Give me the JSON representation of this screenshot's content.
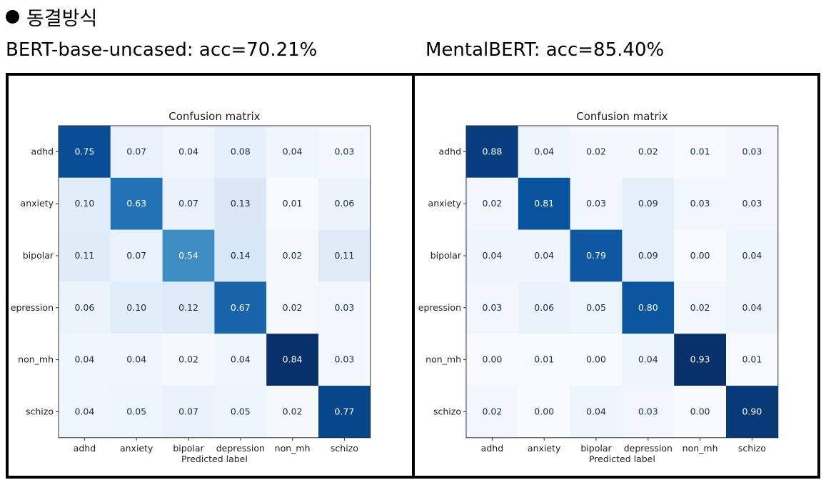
{
  "heading": {
    "bullet_icon": "filled-circle",
    "text": "동결방식"
  },
  "panels": [
    {
      "label": "BERT-base-uncased:  acc=70.21%"
    },
    {
      "label": "MentalBERT:  acc=85.40%"
    }
  ],
  "chart_data": [
    {
      "type": "heatmap",
      "title": "Confusion matrix",
      "xlabel": "Predicted label",
      "ylabel": "",
      "categories": [
        "adhd",
        "anxiety",
        "bipolar",
        "depression",
        "non_mh",
        "schizo"
      ],
      "y_tick_labels": [
        "adhd",
        "anxiety",
        "bipolar",
        "epression",
        "non_mh",
        "schizo"
      ],
      "colormap": "Blues",
      "values": [
        [
          0.75,
          0.07,
          0.04,
          0.08,
          0.04,
          0.03
        ],
        [
          0.1,
          0.63,
          0.07,
          0.13,
          0.01,
          0.06
        ],
        [
          0.11,
          0.07,
          0.54,
          0.14,
          0.02,
          0.11
        ],
        [
          0.06,
          0.1,
          0.12,
          0.67,
          0.02,
          0.03
        ],
        [
          0.04,
          0.04,
          0.02,
          0.04,
          0.84,
          0.03
        ],
        [
          0.04,
          0.05,
          0.07,
          0.05,
          0.02,
          0.77
        ]
      ]
    },
    {
      "type": "heatmap",
      "title": "Confusion matrix",
      "xlabel": "Predicted label",
      "ylabel": "",
      "categories": [
        "adhd",
        "anxiety",
        "bipolar",
        "depression",
        "non_mh",
        "schizo"
      ],
      "y_tick_labels": [
        "adhd",
        "anxiety",
        "bipolar",
        "epression",
        "non_mh",
        "schizo"
      ],
      "colormap": "Blues",
      "values": [
        [
          0.88,
          0.04,
          0.02,
          0.02,
          0.01,
          0.03
        ],
        [
          0.02,
          0.81,
          0.03,
          0.09,
          0.03,
          0.03
        ],
        [
          0.04,
          0.04,
          0.79,
          0.09,
          0.0,
          0.04
        ],
        [
          0.03,
          0.06,
          0.05,
          0.8,
          0.02,
          0.04
        ],
        [
          0.0,
          0.01,
          0.0,
          0.04,
          0.93,
          0.01
        ],
        [
          0.02,
          0.0,
          0.04,
          0.03,
          0.0,
          0.9
        ]
      ]
    }
  ]
}
